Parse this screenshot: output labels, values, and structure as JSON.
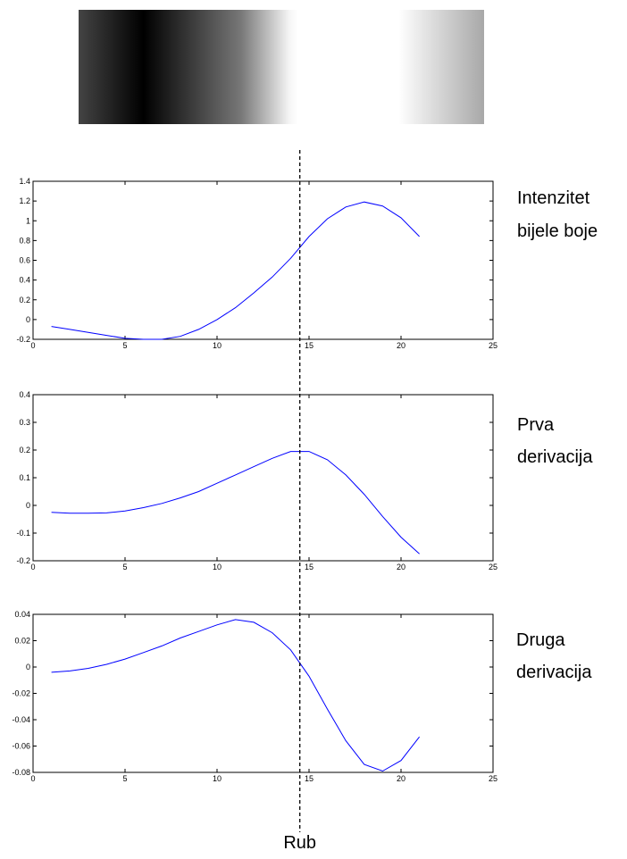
{
  "gradient": {
    "stops": [
      {
        "offset": 0.0,
        "color": "#444444"
      },
      {
        "offset": 0.16,
        "color": "#000000"
      },
      {
        "offset": 0.4,
        "color": "#777777"
      },
      {
        "offset": 0.52,
        "color": "#f5f5f5"
      },
      {
        "offset": 0.54,
        "color": "#ffffff"
      },
      {
        "offset": 0.79,
        "color": "#ffffff"
      },
      {
        "offset": 0.83,
        "color": "#eeeeee"
      },
      {
        "offset": 1.0,
        "color": "#a8a8a8"
      }
    ]
  },
  "edge": {
    "x": 14.5,
    "label": "Rub"
  },
  "chart_data": [
    {
      "type": "line",
      "side_label": [
        "Intenzitet",
        "bijele boje"
      ],
      "xlim": [
        0,
        25
      ],
      "ylim": [
        -0.2,
        1.4
      ],
      "xticks": [
        0,
        5,
        10,
        15,
        20,
        25
      ],
      "yticks": [
        -0.2,
        0,
        0.2,
        0.4,
        0.6,
        0.8,
        1,
        1.2,
        1.4
      ],
      "ytick_labels": [
        "-0.2",
        "0",
        "0.2",
        "0.4",
        "0.6",
        "0.8",
        "1",
        "1.2",
        "1.4"
      ],
      "color": "#0000ff",
      "x": [
        1,
        2,
        3,
        4,
        5,
        6,
        7,
        8,
        9,
        10,
        11,
        12,
        13,
        14,
        15,
        16,
        17,
        18,
        19,
        20,
        21
      ],
      "y": [
        -0.07,
        -0.1,
        -0.13,
        -0.16,
        -0.19,
        -0.2,
        -0.2,
        -0.17,
        -0.1,
        0.0,
        0.12,
        0.27,
        0.43,
        0.62,
        0.84,
        1.02,
        1.14,
        1.19,
        1.15,
        1.03,
        0.84
      ]
    },
    {
      "type": "line",
      "side_label": [
        "Prva",
        "derivacija"
      ],
      "xlim": [
        0,
        25
      ],
      "ylim": [
        -0.2,
        0.4
      ],
      "xticks": [
        0,
        5,
        10,
        15,
        20,
        25
      ],
      "yticks": [
        -0.2,
        -0.1,
        0,
        0.1,
        0.2,
        0.3,
        0.4
      ],
      "ytick_labels": [
        "-0.2",
        "-0.1",
        "0",
        "0.1",
        "0.2",
        "0.3",
        "0.4"
      ],
      "color": "#0000ff",
      "x": [
        1,
        2,
        3,
        4,
        5,
        6,
        7,
        8,
        9,
        10,
        11,
        12,
        13,
        14,
        15,
        16,
        17,
        18,
        19,
        20,
        21
      ],
      "y": [
        -0.025,
        -0.028,
        -0.028,
        -0.027,
        -0.02,
        -0.008,
        0.007,
        0.027,
        0.05,
        0.08,
        0.11,
        0.14,
        0.17,
        0.195,
        0.195,
        0.165,
        0.11,
        0.04,
        -0.04,
        -0.115,
        -0.175
      ]
    },
    {
      "type": "line",
      "side_label": [
        "Druga",
        "derivacija"
      ],
      "xlim": [
        0,
        25
      ],
      "ylim": [
        -0.08,
        0.04
      ],
      "xticks": [
        0,
        5,
        10,
        15,
        20,
        25
      ],
      "yticks": [
        -0.08,
        -0.06,
        -0.04,
        -0.02,
        0,
        0.02,
        0.04
      ],
      "ytick_labels": [
        "-0.08",
        "-0.06",
        "-0.04",
        "-0.02",
        "0",
        "0.02",
        "0.04"
      ],
      "color": "#0000ff",
      "x": [
        1,
        2,
        3,
        4,
        5,
        6,
        7,
        8,
        9,
        10,
        11,
        12,
        13,
        14,
        15,
        16,
        17,
        18,
        19,
        20,
        21
      ],
      "y": [
        -0.004,
        -0.003,
        -0.001,
        0.002,
        0.006,
        0.011,
        0.016,
        0.022,
        0.027,
        0.032,
        0.036,
        0.034,
        0.026,
        0.013,
        -0.007,
        -0.032,
        -0.056,
        -0.074,
        -0.079,
        -0.071,
        -0.053
      ]
    }
  ]
}
